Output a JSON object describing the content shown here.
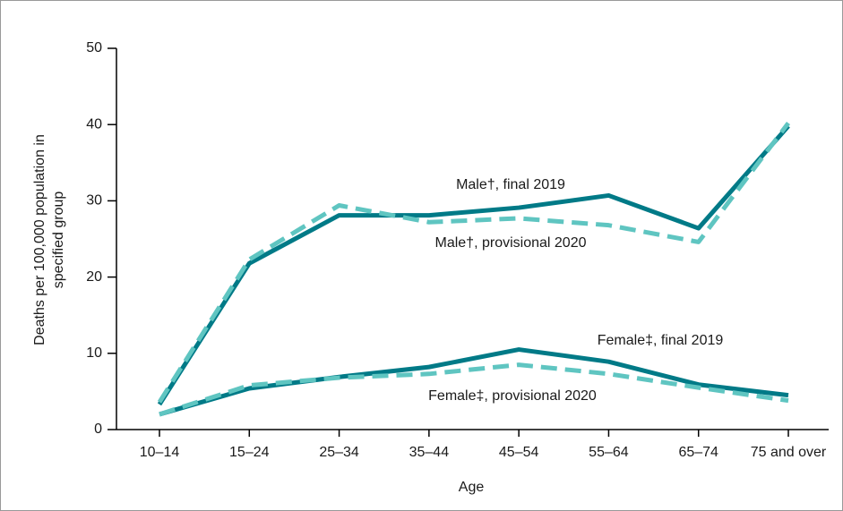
{
  "chart_data": {
    "type": "line",
    "xlabel": "Age",
    "ylabel": [
      "Deaths per 100,000 population in",
      "specified group"
    ],
    "categories": [
      "10–14",
      "15–24",
      "25–34",
      "35–44",
      "45–54",
      "55–64",
      "65–74",
      "75 and over"
    ],
    "ylim": [
      0,
      50
    ],
    "yticks": [
      0,
      10,
      20,
      30,
      40,
      50
    ],
    "series": [
      {
        "name": "Male†, final 2019",
        "color": "#007a87",
        "dash": false,
        "values": [
          3.3,
          21.8,
          28.1,
          28.1,
          29.1,
          30.7,
          26.4,
          39.8
        ]
      },
      {
        "name": "Male†, provisional 2020",
        "color": "#5fc5c1",
        "dash": true,
        "values": [
          3.6,
          22.3,
          29.4,
          27.2,
          27.7,
          26.8,
          24.6,
          40.2
        ]
      },
      {
        "name": "Female‡, final 2019",
        "color": "#007a87",
        "dash": false,
        "values": [
          2.0,
          5.4,
          6.9,
          8.2,
          10.5,
          8.9,
          5.9,
          4.5
        ]
      },
      {
        "name": "Female‡, provisional 2020",
        "color": "#5fc5c1",
        "dash": true,
        "values": [
          2.0,
          5.8,
          6.8,
          7.3,
          8.5,
          7.3,
          5.5,
          3.8
        ]
      }
    ]
  }
}
